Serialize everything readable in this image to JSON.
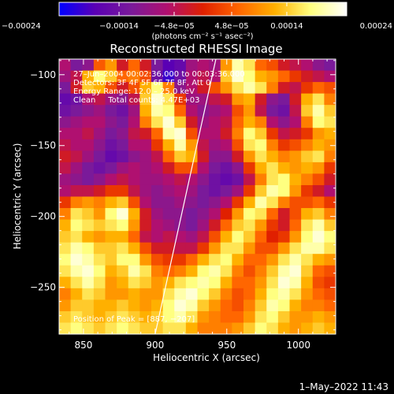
{
  "chart_data": {
    "type": "heatmap",
    "title": "Reconstructed RHESSI Image",
    "xlabel": "Heliocentric X (arcsec)",
    "ylabel": "Heliocentric Y (arcsec)",
    "xlim": [
      833,
      1026
    ],
    "ylim": [
      -283,
      -89
    ],
    "x_ticks": [
      850,
      900,
      950,
      1000
    ],
    "y_ticks": [
      -100,
      -150,
      -200,
      -250
    ],
    "x_tick_labels": [
      "850",
      "900",
      "950",
      "1000"
    ],
    "y_tick_labels": [
      "−100",
      "−150",
      "−200",
      "−250"
    ],
    "colorbar": {
      "range": [
        -0.00024,
        0.00024
      ],
      "tick_values": [
        -0.00024,
        -0.00014,
        -4.8e-05,
        4.8e-05,
        0.00014,
        0.00024
      ],
      "tick_labels": [
        "−0.00024",
        "−0.00014",
        "−4.8e−05",
        "4.8e−05",
        "0.00014",
        "0.00024"
      ],
      "unit_label": "(photons cm⁻² s⁻¹ asec⁻²)",
      "colors": [
        "#0000ff",
        "#5a00b4",
        "#7a1a9a",
        "#b01070",
        "#e02000",
        "#ff6600",
        "#ffb000",
        "#ffff80",
        "#ffffff"
      ]
    },
    "annotations": [
      "27–Jun–2004 00:02:36.000 to 00:03:36.000",
      "Detectors: 3F 4F 5F 6F 7F 8F, Att 0",
      "Energy Range: 12.0 – 25.0 keV",
      "Clean     Total counts: 4.47E+03"
    ],
    "peak_label": "Position of Peak = [887, −207]",
    "limb_line": {
      "x": [
        900,
        940
      ],
      "y": [
        -283,
        -100
      ]
    },
    "image_grid": {
      "nx": 24,
      "ny": 24,
      "rows_top_to_bottom": [
        [
          -6e-05,
          -0.00012,
          -0.0001,
          5e-05,
          0.0001,
          -2e-05,
          6e-05,
          -2e-05,
          -0.00012,
          -0.00018,
          -0.00016,
          -8e-05,
          -6e-05,
          -8e-05,
          0.0001,
          0.0002,
          0.00016,
          6e-05,
          4e-05,
          -2e-05,
          -4e-05,
          -6e-05,
          -0.0001,
          -0.00012
        ],
        [
          -8e-05,
          -4e-05,
          0.00012,
          0.00018,
          0.00014,
          6e-05,
          8e-05,
          4e-05,
          -0.00014,
          -0.0002,
          -0.00014,
          -6e-05,
          -4e-05,
          -6e-05,
          0.00014,
          0.00022,
          0.00018,
          0.00012,
          0.0001,
          6e-05,
          2e-05,
          -2e-05,
          -4e-05,
          -6e-05
        ],
        [
          -0.00012,
          -2e-05,
          0.00014,
          0.00012,
          4e-05,
          -2e-05,
          4e-05,
          0.00012,
          0.00018,
          8e-05,
          -0.0001,
          -6e-05,
          -2e-05,
          4e-05,
          0.0001,
          0.00016,
          0.0002,
          0.00016,
          8e-05,
          -2e-05,
          -4e-05,
          2e-05,
          6e-05,
          4e-05
        ],
        [
          -0.00016,
          -0.00014,
          -6e-05,
          -4e-05,
          -8e-05,
          -0.0001,
          -4e-05,
          0.00014,
          0.00022,
          0.00016,
          2e-05,
          -8e-05,
          -8e-05,
          -4e-05,
          -2e-05,
          0.0001,
          0.00012,
          -2e-05,
          -0.0001,
          -0.00012,
          -2e-05,
          0.00012,
          0.00016,
          8e-05
        ],
        [
          -0.00014,
          -0.00012,
          -0.0001,
          -8e-05,
          -0.00012,
          -0.00014,
          -8e-05,
          0.00012,
          0.0002,
          0.00018,
          6e-05,
          -6e-05,
          -0.0001,
          -8e-05,
          -6e-05,
          4e-05,
          0.0001,
          -4e-05,
          -0.00012,
          -0.00014,
          -4e-05,
          0.00014,
          0.0002,
          0.00014
        ],
        [
          -0.0001,
          -8e-05,
          -6e-05,
          -6e-05,
          -0.0001,
          -0.00012,
          -6e-05,
          8e-05,
          0.00016,
          0.00022,
          0.00014,
          -2e-05,
          -8e-05,
          -6e-05,
          -4e-05,
          6e-05,
          0.00012,
          8e-05,
          -6e-05,
          -0.0001,
          -6e-05,
          8e-05,
          0.00018,
          0.00016
        ],
        [
          -6e-05,
          -6e-05,
          -4e-05,
          -8e-05,
          -0.00012,
          -0.0001,
          -4e-05,
          -2e-05,
          6e-05,
          0.0002,
          0.00022,
          4e-05,
          -6e-05,
          -6e-05,
          -2e-05,
          8e-05,
          0.00018,
          0.00014,
          2e-05,
          -4e-05,
          -2e-05,
          2e-05,
          0.0001,
          0.00012
        ],
        [
          -4e-05,
          -6e-05,
          -6e-05,
          -0.0001,
          -0.00014,
          -0.00012,
          -6e-05,
          -6e-05,
          2e-05,
          0.00012,
          0.0002,
          0.0001,
          -4e-05,
          -8e-05,
          -6e-05,
          4e-05,
          0.00016,
          0.00018,
          8e-05,
          2e-05,
          4e-05,
          8e-05,
          0.00012,
          0.0001
        ],
        [
          -2e-05,
          -4e-05,
          -8e-05,
          -0.00012,
          -0.00016,
          -0.00014,
          -0.0001,
          -8e-05,
          -4e-05,
          6e-05,
          0.00014,
          0.00012,
          -2e-05,
          -0.0001,
          -0.0001,
          -2e-05,
          0.0001,
          0.00016,
          0.00012,
          8e-05,
          0.0001,
          0.00014,
          0.00016,
          8e-05
        ],
        [
          -4e-05,
          -8e-05,
          -0.00012,
          -0.00014,
          -0.00012,
          -8e-05,
          -6e-05,
          -8e-05,
          -6e-05,
          -2e-05,
          4e-05,
          4e-05,
          -6e-05,
          -0.00012,
          -0.00014,
          -0.0001,
          2e-05,
          0.00012,
          0.00016,
          0.00012,
          0.0001,
          0.00012,
          0.0001,
          2e-05
        ],
        [
          -8e-05,
          -0.0001,
          -0.00012,
          -0.0001,
          -6e-05,
          -4e-05,
          -6e-05,
          -8e-05,
          -8e-05,
          -6e-05,
          -4e-05,
          -6e-05,
          -0.0001,
          -0.00014,
          -0.00016,
          -0.00014,
          -4e-05,
          8e-05,
          0.00016,
          0.00018,
          0.00012,
          8e-05,
          4e-05,
          -2e-05
        ],
        [
          -6e-05,
          -4e-05,
          -4e-05,
          -2e-05,
          2e-05,
          2e-05,
          -4e-05,
          -8e-05,
          -0.0001,
          -8e-05,
          -6e-05,
          -8e-05,
          -0.00012,
          -0.00014,
          -0.00012,
          -8e-05,
          2e-05,
          0.00014,
          0.0002,
          0.00018,
          0.0001,
          2e-05,
          -2e-05,
          -6e-05
        ],
        [
          2e-05,
          8e-05,
          0.0001,
          8e-05,
          0.00012,
          0.00014,
          4e-05,
          -6e-05,
          -0.0001,
          -0.0001,
          -8e-05,
          -0.0001,
          -0.00012,
          -0.0001,
          -6e-05,
          2e-05,
          0.00012,
          0.0002,
          0.00016,
          8e-05,
          4e-05,
          4e-05,
          6e-05,
          2e-05
        ],
        [
          8e-05,
          0.00016,
          0.00014,
          0.0001,
          0.00018,
          0.00022,
          0.00012,
          -2e-05,
          -8e-05,
          -0.0001,
          -0.0001,
          -0.00012,
          -0.0001,
          -6e-05,
          0.0,
          0.0001,
          0.00018,
          0.00016,
          6e-05,
          -2e-05,
          4e-05,
          0.00012,
          0.00014,
          8e-05
        ],
        [
          0.00012,
          0.00018,
          0.00016,
          0.00014,
          0.00016,
          0.00018,
          0.0001,
          -2e-05,
          -6e-05,
          -8e-05,
          -0.0001,
          -0.00012,
          -8e-05,
          -2e-05,
          6e-05,
          0.00014,
          0.00016,
          0.0001,
          2e-05,
          -2e-05,
          6e-05,
          0.00016,
          0.0002,
          0.00014
        ],
        [
          0.00014,
          0.00016,
          0.00012,
          0.0001,
          0.00012,
          0.00012,
          6e-05,
          -4e-05,
          -6e-05,
          -4e-05,
          -6e-05,
          -8e-05,
          -4e-05,
          4e-05,
          0.00012,
          0.00018,
          0.00014,
          6e-05,
          0.0,
          2e-05,
          0.0001,
          0.00018,
          0.00022,
          0.00018
        ],
        [
          0.00016,
          0.0002,
          0.00018,
          0.00014,
          0.00014,
          0.00016,
          0.00012,
          4e-05,
          -2e-05,
          -2e-05,
          -4e-05,
          -4e-05,
          2e-05,
          0.0001,
          0.00016,
          0.00016,
          0.0001,
          4e-05,
          4e-05,
          0.0001,
          0.00016,
          0.0002,
          0.0002,
          0.00016
        ],
        [
          0.00018,
          0.00022,
          0.0002,
          0.00016,
          0.00014,
          0.00018,
          0.00018,
          0.0001,
          4e-05,
          2e-05,
          2e-05,
          6e-05,
          0.00012,
          0.00016,
          0.00018,
          0.00012,
          6e-05,
          6e-05,
          0.0001,
          0.00016,
          0.0002,
          0.00016,
          0.00012,
          0.0001
        ],
        [
          0.00016,
          0.0002,
          0.00022,
          0.00018,
          0.00012,
          0.00014,
          0.0002,
          0.00016,
          8e-05,
          6e-05,
          8e-05,
          0.00012,
          0.00018,
          0.0002,
          0.00016,
          8e-05,
          4e-05,
          8e-05,
          0.00014,
          0.0002,
          0.00022,
          0.00014,
          6e-05,
          4e-05
        ],
        [
          0.00012,
          0.00016,
          0.0002,
          0.00016,
          0.0001,
          0.00012,
          0.00016,
          0.00014,
          0.0001,
          0.00012,
          0.00016,
          0.00018,
          0.0002,
          0.00018,
          0.00012,
          6e-05,
          6e-05,
          0.0001,
          0.00016,
          0.00022,
          0.0002,
          0.00012,
          4e-05,
          2e-05
        ],
        [
          8e-05,
          0.00012,
          0.00016,
          0.00014,
          0.0001,
          0.0001,
          0.00012,
          0.0001,
          0.0001,
          0.00016,
          0.0002,
          0.00022,
          0.00018,
          0.00014,
          8e-05,
          4e-05,
          6e-05,
          0.00012,
          0.00018,
          0.0002,
          0.00016,
          0.0001,
          6e-05,
          4e-05
        ],
        [
          0.0001,
          0.00014,
          0.00014,
          0.00012,
          0.00012,
          0.00014,
          0.00012,
          0.0001,
          0.00012,
          0.00018,
          0.00022,
          0.0002,
          0.00014,
          0.0001,
          6e-05,
          4e-05,
          8e-05,
          0.00014,
          0.0002,
          0.00018,
          0.00012,
          8e-05,
          8e-05,
          6e-05
        ],
        [
          0.00014,
          0.00016,
          0.00014,
          0.00012,
          0.00014,
          0.00016,
          0.00014,
          0.00012,
          0.00014,
          0.00018,
          0.0002,
          0.00016,
          0.0001,
          8e-05,
          6e-05,
          6e-05,
          0.0001,
          0.00016,
          0.00018,
          0.00014,
          0.0001,
          0.0001,
          0.00012,
          0.0001
        ],
        [
          0.00016,
          0.00018,
          0.00016,
          0.00014,
          0.00016,
          0.00018,
          0.00016,
          0.00014,
          0.00014,
          0.00016,
          0.00016,
          0.00012,
          8e-05,
          8e-05,
          8e-05,
          0.0001,
          0.00014,
          0.00018,
          0.00016,
          0.00012,
          0.0001,
          0.00012,
          0.00014,
          0.00012
        ]
      ]
    }
  },
  "footer": {
    "timestamp": "1–May–2022 11:43"
  }
}
